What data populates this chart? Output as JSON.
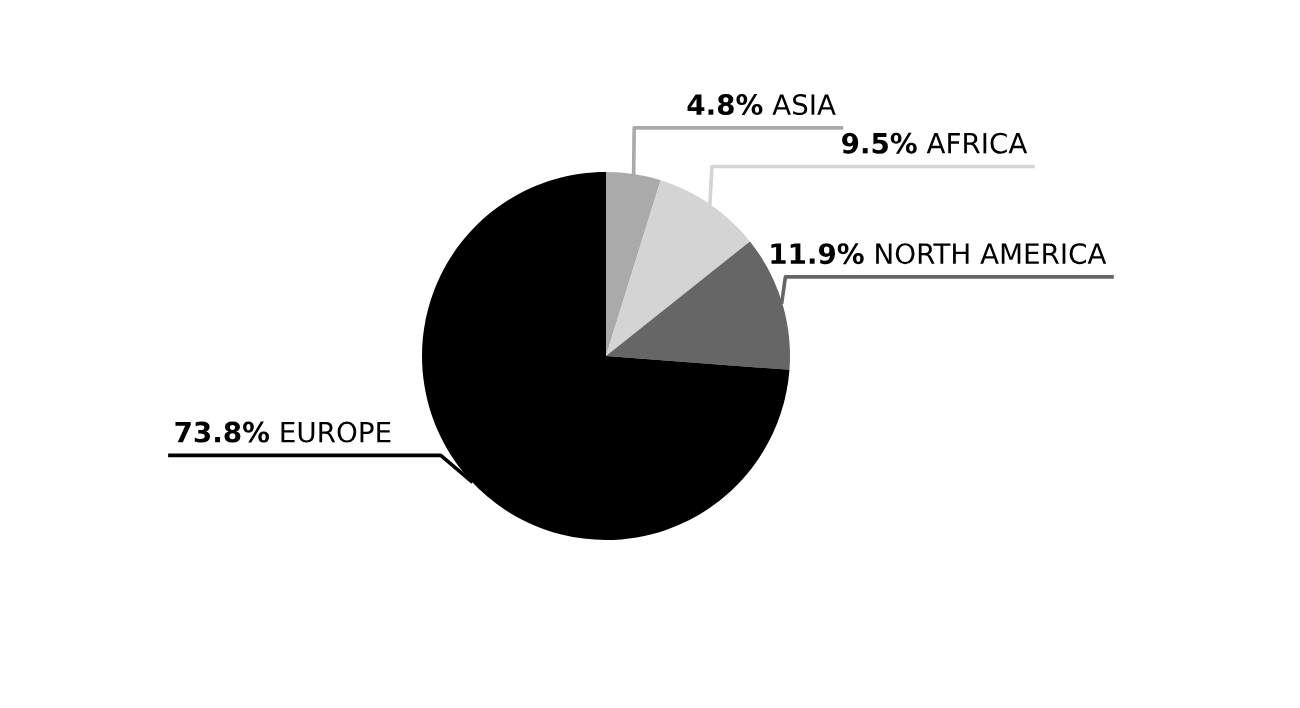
{
  "chart_data": {
    "type": "pie",
    "categories": [
      "ASIA",
      "AFRICA",
      "NORTH AMERICA",
      "EUROPE"
    ],
    "values": [
      4.8,
      9.5,
      11.9,
      73.8
    ],
    "colors": [
      "#aaaaaa",
      "#d4d4d4",
      "#666666",
      "#000000"
    ],
    "value_labels": [
      "4.8%",
      "9.5%",
      "11.9%",
      "73.8%"
    ]
  }
}
